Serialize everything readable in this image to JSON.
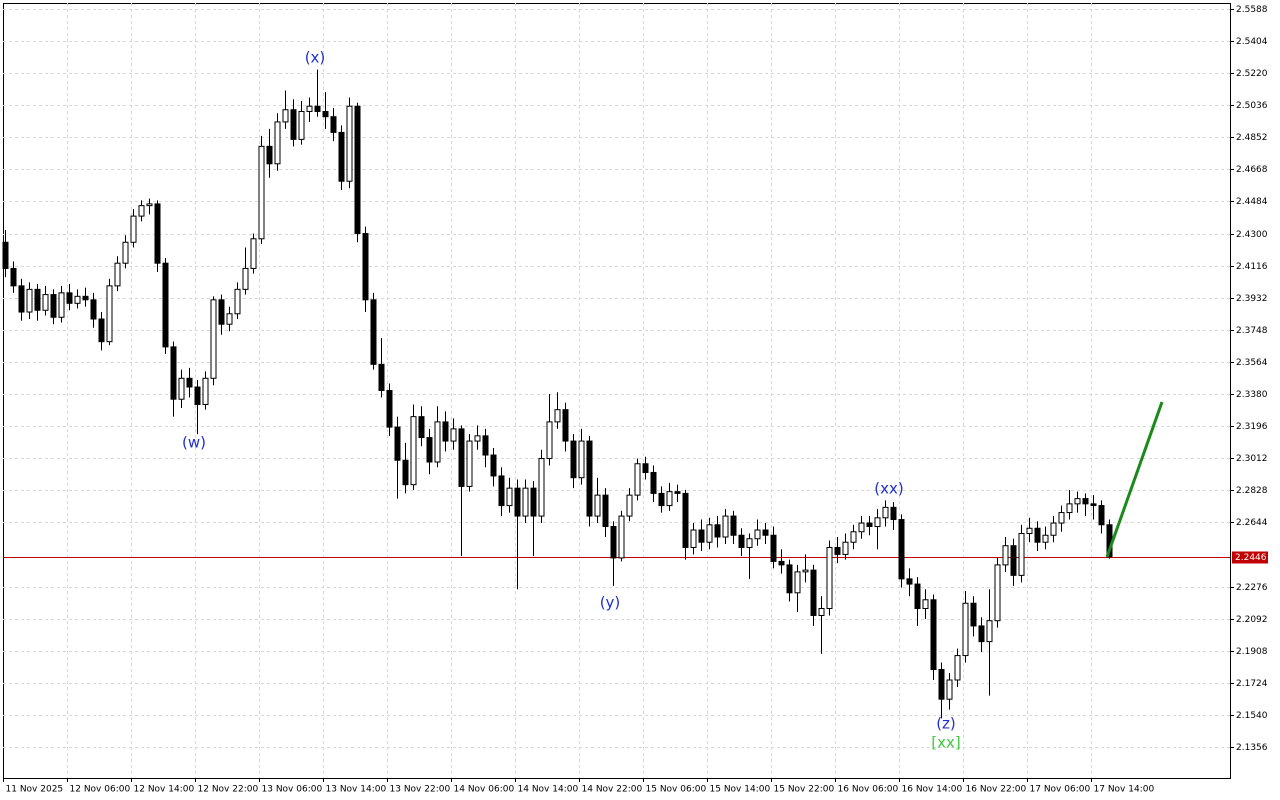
{
  "chart_data": {
    "type": "candlestick",
    "categories": [
      "11 Nov 2025",
      null,
      null,
      null,
      null,
      null,
      null,
      null,
      "12 Nov 06:00",
      null,
      null,
      null,
      null,
      null,
      null,
      null,
      "12 Nov 14:00",
      null,
      null,
      null,
      null,
      null,
      null,
      null,
      "12 Nov 22:00",
      null,
      null,
      null,
      null,
      null,
      null,
      null,
      "13 Nov 06:00",
      null,
      null,
      null,
      null,
      null,
      null,
      null,
      "13 Nov 14:00",
      null,
      null,
      null,
      null,
      null,
      null,
      null,
      "13 Nov 22:00",
      null,
      null,
      null,
      null,
      null,
      null,
      null,
      "14 Nov 06:00",
      null,
      null,
      null,
      null,
      null,
      null,
      null,
      "14 Nov 14:00",
      null,
      null,
      null,
      null,
      null,
      null,
      null,
      "14 Nov 22:00",
      null,
      null,
      null,
      null,
      null,
      null,
      null,
      "15 Nov 06:00",
      null,
      null,
      null,
      null,
      null,
      null,
      null,
      "15 Nov 14:00",
      null,
      null,
      null,
      null,
      null,
      null,
      null,
      "15 Nov 22:00",
      null,
      null,
      null,
      null,
      null,
      null,
      null,
      "16 Nov 06:00",
      null,
      null,
      null,
      null,
      null,
      null,
      null,
      "16 Nov 14:00",
      null,
      null,
      null,
      null,
      null,
      null,
      null,
      "16 Nov 22:00",
      null,
      null,
      null,
      null,
      null,
      null,
      null,
      "17 Nov 06:00",
      null,
      null,
      null,
      null,
      null,
      null,
      null,
      "17 Nov 14:00",
      null,
      null
    ],
    "ohlc": [
      [
        2.425,
        2.432,
        2.405,
        2.41
      ],
      [
        2.41,
        2.414,
        2.396,
        2.4
      ],
      [
        2.4,
        2.404,
        2.38,
        2.385
      ],
      [
        2.385,
        2.402,
        2.381,
        2.398
      ],
      [
        2.398,
        2.401,
        2.38,
        2.386
      ],
      [
        2.386,
        2.4,
        2.383,
        2.395
      ],
      [
        2.395,
        2.398,
        2.378,
        2.382
      ],
      [
        2.382,
        2.4,
        2.379,
        2.396
      ],
      [
        2.396,
        2.401,
        2.386,
        2.39
      ],
      [
        2.39,
        2.398,
        2.387,
        2.394
      ],
      [
        2.394,
        2.399,
        2.388,
        2.392
      ],
      [
        2.392,
        2.396,
        2.376,
        2.381
      ],
      [
        2.381,
        2.385,
        2.363,
        2.368
      ],
      [
        2.368,
        2.404,
        2.366,
        2.4
      ],
      [
        2.4,
        2.417,
        2.397,
        2.413
      ],
      [
        2.413,
        2.429,
        2.41,
        2.425
      ],
      [
        2.425,
        2.444,
        2.422,
        2.44
      ],
      [
        2.44,
        2.449,
        2.437,
        2.446
      ],
      [
        2.446,
        2.45,
        2.441,
        2.447
      ],
      [
        2.447,
        2.449,
        2.408,
        2.413
      ],
      [
        2.413,
        2.416,
        2.361,
        2.365
      ],
      [
        2.365,
        2.368,
        2.325,
        2.335
      ],
      [
        2.335,
        2.352,
        2.33,
        2.347
      ],
      [
        2.347,
        2.353,
        2.336,
        2.342
      ],
      [
        2.342,
        2.346,
        2.315,
        2.332
      ],
      [
        2.332,
        2.351,
        2.329,
        2.347
      ],
      [
        2.347,
        2.394,
        2.343,
        2.392
      ],
      [
        2.392,
        2.395,
        2.372,
        2.378
      ],
      [
        2.378,
        2.388,
        2.374,
        2.384
      ],
      [
        2.384,
        2.402,
        2.381,
        2.398
      ],
      [
        2.398,
        2.422,
        2.395,
        2.41
      ],
      [
        2.41,
        2.43,
        2.407,
        2.427
      ],
      [
        2.427,
        2.486,
        2.424,
        2.48
      ],
      [
        2.48,
        2.49,
        2.462,
        2.47
      ],
      [
        2.47,
        2.499,
        2.466,
        2.494
      ],
      [
        2.494,
        2.512,
        2.49,
        2.501
      ],
      [
        2.501,
        2.507,
        2.48,
        2.484
      ],
      [
        2.484,
        2.506,
        2.481,
        2.5
      ],
      [
        2.5,
        2.508,
        2.494,
        2.503
      ],
      [
        2.503,
        2.524,
        2.497,
        2.5
      ],
      [
        2.5,
        2.511,
        2.49,
        2.497
      ],
      [
        2.497,
        2.502,
        2.483,
        2.488
      ],
      [
        2.488,
        2.492,
        2.455,
        2.46
      ],
      [
        2.46,
        2.508,
        2.456,
        2.503
      ],
      [
        2.503,
        2.505,
        2.425,
        2.43
      ],
      [
        2.43,
        2.434,
        2.385,
        2.392
      ],
      [
        2.392,
        2.396,
        2.352,
        2.355
      ],
      [
        2.355,
        2.37,
        2.336,
        2.34
      ],
      [
        2.34,
        2.344,
        2.314,
        2.319
      ],
      [
        2.319,
        2.325,
        2.278,
        2.3
      ],
      [
        2.3,
        2.31,
        2.281,
        2.286
      ],
      [
        2.286,
        2.332,
        2.283,
        2.325
      ],
      [
        2.325,
        2.331,
        2.308,
        2.313
      ],
      [
        2.313,
        2.318,
        2.292,
        2.299
      ],
      [
        2.299,
        2.331,
        2.296,
        2.322
      ],
      [
        2.322,
        2.328,
        2.305,
        2.311
      ],
      [
        2.311,
        2.324,
        2.306,
        2.318
      ],
      [
        2.318,
        2.32,
        2.245,
        2.285
      ],
      [
        2.285,
        2.315,
        2.282,
        2.311
      ],
      [
        2.311,
        2.32,
        2.306,
        2.314
      ],
      [
        2.314,
        2.318,
        2.296,
        2.303
      ],
      [
        2.303,
        2.307,
        2.285,
        2.291
      ],
      [
        2.291,
        2.296,
        2.268,
        2.274
      ],
      [
        2.274,
        2.29,
        2.27,
        2.284
      ],
      [
        2.284,
        2.289,
        2.226,
        2.268
      ],
      [
        2.268,
        2.289,
        2.264,
        2.284
      ],
      [
        2.284,
        2.288,
        2.245,
        2.268
      ],
      [
        2.268,
        2.306,
        2.264,
        2.301
      ],
      [
        2.301,
        2.338,
        2.297,
        2.322
      ],
      [
        2.322,
        2.339,
        2.318,
        2.329
      ],
      [
        2.329,
        2.333,
        2.305,
        2.311
      ],
      [
        2.311,
        2.315,
        2.284,
        2.29
      ],
      [
        2.29,
        2.318,
        2.286,
        2.311
      ],
      [
        2.311,
        2.314,
        2.262,
        2.268
      ],
      [
        2.268,
        2.29,
        2.264,
        2.28
      ],
      [
        2.28,
        2.284,
        2.256,
        2.262
      ],
      [
        2.262,
        2.265,
        2.228,
        2.244
      ],
      [
        2.244,
        2.271,
        2.242,
        2.268
      ],
      [
        2.268,
        2.284,
        2.265,
        2.28
      ],
      [
        2.28,
        2.301,
        2.277,
        2.298
      ],
      [
        2.298,
        2.302,
        2.289,
        2.293
      ],
      [
        2.293,
        2.297,
        2.276,
        2.281
      ],
      [
        2.281,
        2.285,
        2.27,
        2.274
      ],
      [
        2.274,
        2.287,
        2.271,
        2.282
      ],
      [
        2.282,
        2.286,
        2.276,
        2.281
      ],
      [
        2.281,
        2.283,
        2.243,
        2.25
      ],
      [
        2.25,
        2.264,
        2.246,
        2.26
      ],
      [
        2.26,
        2.266,
        2.248,
        2.253
      ],
      [
        2.253,
        2.267,
        2.249,
        2.263
      ],
      [
        2.263,
        2.268,
        2.25,
        2.256
      ],
      [
        2.256,
        2.272,
        2.252,
        2.268
      ],
      [
        2.268,
        2.271,
        2.252,
        2.257
      ],
      [
        2.257,
        2.261,
        2.245,
        2.25
      ],
      [
        2.25,
        2.258,
        2.232,
        2.255
      ],
      [
        2.255,
        2.266,
        2.251,
        2.26
      ],
      [
        2.26,
        2.264,
        2.252,
        2.257
      ],
      [
        2.257,
        2.262,
        2.238,
        2.242
      ],
      [
        2.242,
        2.249,
        2.235,
        2.24
      ],
      [
        2.24,
        2.243,
        2.219,
        2.224
      ],
      [
        2.224,
        2.24,
        2.213,
        2.236
      ],
      [
        2.236,
        2.246,
        2.23,
        2.237
      ],
      [
        2.237,
        2.24,
        2.205,
        2.211
      ],
      [
        2.211,
        2.222,
        2.189,
        2.215
      ],
      [
        2.215,
        2.254,
        2.211,
        2.25
      ],
      [
        2.25,
        2.256,
        2.241,
        2.246
      ],
      [
        2.246,
        2.258,
        2.243,
        2.253
      ],
      [
        2.253,
        2.263,
        2.249,
        2.259
      ],
      [
        2.259,
        2.268,
        2.255,
        2.264
      ],
      [
        2.264,
        2.268,
        2.257,
        2.262
      ],
      [
        2.262,
        2.272,
        2.249,
        2.267
      ],
      [
        2.267,
        2.277,
        2.262,
        2.273
      ],
      [
        2.273,
        2.276,
        2.26,
        2.266
      ],
      [
        2.266,
        2.269,
        2.227,
        2.232
      ],
      [
        2.232,
        2.238,
        2.222,
        2.229
      ],
      [
        2.229,
        2.233,
        2.205,
        2.215
      ],
      [
        2.215,
        2.226,
        2.209,
        2.22
      ],
      [
        2.22,
        2.223,
        2.174,
        2.18
      ],
      [
        2.18,
        2.184,
        2.152,
        2.163
      ],
      [
        2.163,
        2.178,
        2.157,
        2.174
      ],
      [
        2.174,
        2.192,
        2.17,
        2.188
      ],
      [
        2.188,
        2.225,
        2.184,
        2.218
      ],
      [
        2.218,
        2.222,
        2.199,
        2.205
      ],
      [
        2.205,
        2.21,
        2.19,
        2.196
      ],
      [
        2.196,
        2.226,
        2.165,
        2.208
      ],
      [
        2.208,
        2.244,
        2.204,
        2.24
      ],
      [
        2.24,
        2.256,
        2.236,
        2.251
      ],
      [
        2.251,
        2.255,
        2.228,
        2.234
      ],
      [
        2.234,
        2.263,
        2.23,
        2.258
      ],
      [
        2.258,
        2.267,
        2.253,
        2.261
      ],
      [
        2.261,
        2.265,
        2.248,
        2.253
      ],
      [
        2.253,
        2.262,
        2.249,
        2.257
      ],
      [
        2.257,
        2.268,
        2.253,
        2.264
      ],
      [
        2.264,
        2.274,
        2.259,
        2.27
      ],
      [
        2.27,
        2.283,
        2.266,
        2.275
      ],
      [
        2.275,
        2.282,
        2.27,
        2.278
      ],
      [
        2.278,
        2.281,
        2.268,
        2.275
      ],
      [
        2.275,
        2.28,
        2.266,
        2.274
      ],
      [
        2.274,
        2.277,
        2.258,
        2.263
      ],
      [
        2.263,
        2.266,
        2.2436,
        2.2446
      ]
    ],
    "ylim": [
      2.1178,
      2.5622
    ],
    "yticks": [
      2.5588,
      2.5404,
      {
        "value": 2.522,
        "label": "2.5220"
      },
      2.5036,
      2.4852,
      2.4668,
      2.4484,
      {
        "value": 2.43,
        "label": "2.4300"
      },
      2.4116,
      2.3932,
      2.3748,
      2.3564,
      {
        "value": 2.338,
        "label": "2.3380"
      },
      2.3196,
      2.3012,
      2.2828,
      2.2644,
      2.2276,
      2.2092,
      2.1908,
      2.1724,
      {
        "value": 2.154,
        "label": "2.1540"
      },
      2.1356
    ],
    "grid": true,
    "price_line": {
      "value": 2.2446,
      "color": "#c00000"
    },
    "forecast": {
      "color": "#1a8a1a",
      "values": [
        2.2446,
        2.3334
      ]
    },
    "annotations": [
      {
        "text": "(w)",
        "color": "#1f2fd0"
      },
      {
        "text": "(x)",
        "color": "#1f2fd0"
      },
      {
        "text": "(y)",
        "color": "#1f2fd0"
      },
      {
        "text": "(xx)",
        "color": "#1f2fd0"
      },
      {
        "text": "(z)",
        "color": "#1f2fd0"
      },
      {
        "text": "[xx]",
        "color": "#3ec93e"
      }
    ]
  }
}
